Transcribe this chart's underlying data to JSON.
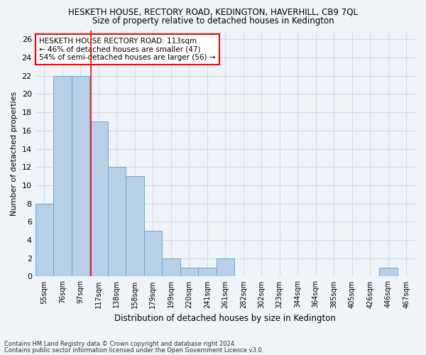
{
  "title": "HESKETH HOUSE, RECTORY ROAD, KEDINGTON, HAVERHILL, CB9 7QL",
  "subtitle": "Size of property relative to detached houses in Kedington",
  "xlabel": "Distribution of detached houses by size in Kedington",
  "ylabel": "Number of detached properties",
  "bin_labels": [
    "55sqm",
    "76sqm",
    "97sqm",
    "117sqm",
    "138sqm",
    "158sqm",
    "179sqm",
    "199sqm",
    "220sqm",
    "241sqm",
    "261sqm",
    "282sqm",
    "302sqm",
    "323sqm",
    "344sqm",
    "364sqm",
    "385sqm",
    "405sqm",
    "426sqm",
    "446sqm",
    "467sqm"
  ],
  "bar_values": [
    8,
    22,
    22,
    17,
    12,
    11,
    5,
    2,
    1,
    1,
    2,
    0,
    0,
    0,
    0,
    0,
    0,
    0,
    0,
    1,
    0
  ],
  "bar_color": "#b8d0e8",
  "bar_edge_color": "#6aaad4",
  "grid_color": "#d0dce8",
  "background_color": "#f0f4f8",
  "annotation_box_text": "HESKETH HOUSE RECTORY ROAD: 113sqm\n← 46% of detached houses are smaller (47)\n54% of semi-detached houses are larger (56) →",
  "red_line_x": 2.58,
  "ylim": [
    0,
    27
  ],
  "yticks": [
    0,
    2,
    4,
    6,
    8,
    10,
    12,
    14,
    16,
    18,
    20,
    22,
    24,
    26
  ],
  "footnote1": "Contains HM Land Registry data © Crown copyright and database right 2024.",
  "footnote2": "Contains public sector information licensed under the Open Government Licence v3.0."
}
